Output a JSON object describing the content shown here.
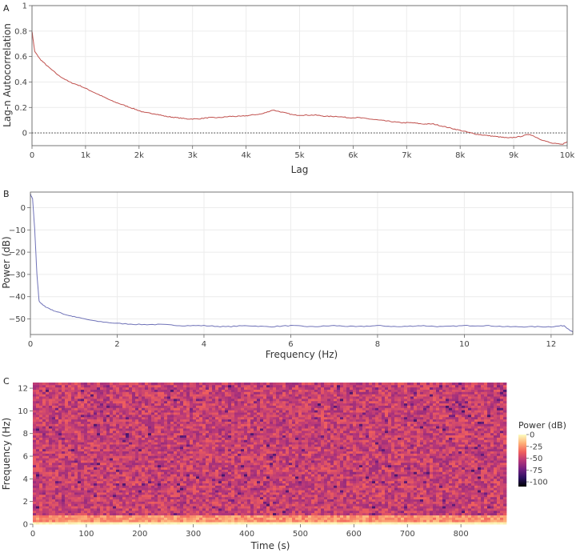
{
  "chart_data": [
    {
      "panel": "A",
      "type": "line",
      "xlabel": "Lag",
      "ylabel": "Lag-n Autocorrelation",
      "xlim": [
        0,
        10000
      ],
      "ylim": [
        -0.1,
        1
      ],
      "xticks": [
        {
          "v": 0,
          "label": "0"
        },
        {
          "v": 1000,
          "label": "1k"
        },
        {
          "v": 2000,
          "label": "2k"
        },
        {
          "v": 3000,
          "label": "3k"
        },
        {
          "v": 4000,
          "label": "4k"
        },
        {
          "v": 5000,
          "label": "5k"
        },
        {
          "v": 6000,
          "label": "6k"
        },
        {
          "v": 7000,
          "label": "7k"
        },
        {
          "v": 8000,
          "label": "8k"
        },
        {
          "v": 9000,
          "label": "9k"
        },
        {
          "v": 10000,
          "label": "10k"
        }
      ],
      "yticks": [
        {
          "v": 0,
          "label": "0"
        },
        {
          "v": 0.2,
          "label": "0.2"
        },
        {
          "v": 0.4,
          "label": "0.4"
        },
        {
          "v": 0.6,
          "label": "0.6"
        },
        {
          "v": 0.8,
          "label": "0.8"
        },
        {
          "v": 1,
          "label": "1"
        }
      ],
      "grid": true,
      "line_color": "#c0504d",
      "zero_line": {
        "y": 0,
        "style": "dotted"
      },
      "series": [
        {
          "x": [
            0,
            50,
            150,
            300,
            500,
            700,
            900,
            1100,
            1300,
            1500,
            1700,
            1900,
            2100,
            2300,
            2500,
            2700,
            2900,
            3100,
            3300,
            3500,
            3700,
            3900,
            4100,
            4300,
            4500,
            4700,
            4900,
            5100,
            5300,
            5500,
            5700,
            5900,
            6100,
            6300,
            6500,
            6700,
            6900,
            7100,
            7300,
            7500,
            7700,
            7900,
            8100,
            8300,
            8500,
            8700,
            8900,
            9100,
            9300,
            9500,
            9700,
            9900,
            10000
          ],
          "y": [
            0.8,
            0.64,
            0.58,
            0.52,
            0.45,
            0.4,
            0.37,
            0.33,
            0.29,
            0.25,
            0.22,
            0.19,
            0.16,
            0.15,
            0.13,
            0.12,
            0.11,
            0.11,
            0.12,
            0.12,
            0.13,
            0.13,
            0.14,
            0.15,
            0.18,
            0.16,
            0.14,
            0.14,
            0.14,
            0.13,
            0.13,
            0.12,
            0.12,
            0.11,
            0.1,
            0.09,
            0.08,
            0.08,
            0.07,
            0.07,
            0.05,
            0.03,
            0.01,
            -0.01,
            -0.02,
            -0.03,
            -0.04,
            -0.03,
            -0.01,
            -0.05,
            -0.08,
            -0.09,
            -0.07
          ]
        }
      ]
    },
    {
      "panel": "B",
      "type": "line",
      "xlabel": "Frequency (Hz)",
      "ylabel": "Power (dB)",
      "xlim": [
        0,
        12.5
      ],
      "ylim": [
        -57,
        7
      ],
      "xticks": [
        {
          "v": 0,
          "label": "0"
        },
        {
          "v": 2,
          "label": "2"
        },
        {
          "v": 4,
          "label": "4"
        },
        {
          "v": 6,
          "label": "6"
        },
        {
          "v": 8,
          "label": "8"
        },
        {
          "v": 10,
          "label": "10"
        },
        {
          "v": 12,
          "label": "12"
        }
      ],
      "yticks": [
        {
          "v": 0,
          "label": "0"
        },
        {
          "v": -10,
          "label": "−10"
        },
        {
          "v": -20,
          "label": "−20"
        },
        {
          "v": -30,
          "label": "−30"
        },
        {
          "v": -40,
          "label": "−40"
        },
        {
          "v": -50,
          "label": "−50"
        }
      ],
      "grid": true,
      "line_color": "#6f72b8",
      "series": [
        {
          "x": [
            0,
            0.05,
            0.1,
            0.15,
            0.2,
            0.3,
            0.5,
            0.8,
            1.0,
            1.5,
            2.0,
            2.5,
            3.0,
            3.5,
            4.0,
            4.5,
            5.0,
            5.5,
            6.0,
            6.5,
            7.0,
            7.5,
            8.0,
            8.5,
            9.0,
            9.5,
            10.0,
            10.5,
            11.0,
            11.5,
            12.0,
            12.3,
            12.5
          ],
          "y": [
            6,
            4,
            -10,
            -30,
            -42,
            -44,
            -46,
            -48,
            -49,
            -51,
            -52,
            -52.5,
            -52.5,
            -53,
            -53,
            -53.5,
            -53,
            -53.5,
            -53,
            -53.5,
            -53,
            -53.5,
            -53,
            -53.5,
            -53,
            -53.5,
            -53,
            -53,
            -53.5,
            -53.5,
            -53.5,
            -53,
            -56
          ]
        }
      ]
    },
    {
      "panel": "C",
      "type": "heatmap",
      "xlabel": "Time (s)",
      "ylabel": "Frequency (Hz)",
      "xlim": [
        0,
        885
      ],
      "ylim": [
        0,
        12.5
      ],
      "xticks": [
        {
          "v": 0,
          "label": "0"
        },
        {
          "v": 100,
          "label": "100"
        },
        {
          "v": 200,
          "label": "200"
        },
        {
          "v": 300,
          "label": "300"
        },
        {
          "v": 400,
          "label": "400"
        },
        {
          "v": 500,
          "label": "500"
        },
        {
          "v": 600,
          "label": "600"
        },
        {
          "v": 700,
          "label": "700"
        },
        {
          "v": 800,
          "label": "800"
        }
      ],
      "yticks": [
        {
          "v": 0,
          "label": "0"
        },
        {
          "v": 2,
          "label": "2"
        },
        {
          "v": 4,
          "label": "4"
        },
        {
          "v": 6,
          "label": "6"
        },
        {
          "v": 8,
          "label": "8"
        },
        {
          "v": 10,
          "label": "10"
        },
        {
          "v": 12,
          "label": "12"
        }
      ],
      "colorbar": {
        "title": "Power (dB)",
        "range": [
          -110,
          0
        ],
        "ticks": [
          {
            "v": 0,
            "label": "0"
          },
          {
            "v": -25,
            "label": "-25"
          },
          {
            "v": -50,
            "label": "-50"
          },
          {
            "v": -75,
            "label": "-75"
          },
          {
            "v": -100,
            "label": "-100"
          }
        ],
        "colormap": "magma",
        "colors": [
          "#000004",
          "#2c115f",
          "#721f81",
          "#b73779",
          "#f1605d",
          "#feb078",
          "#fcfdbf"
        ]
      },
      "typical_power_db": -50,
      "low_frequency_power_db": -25
    }
  ]
}
